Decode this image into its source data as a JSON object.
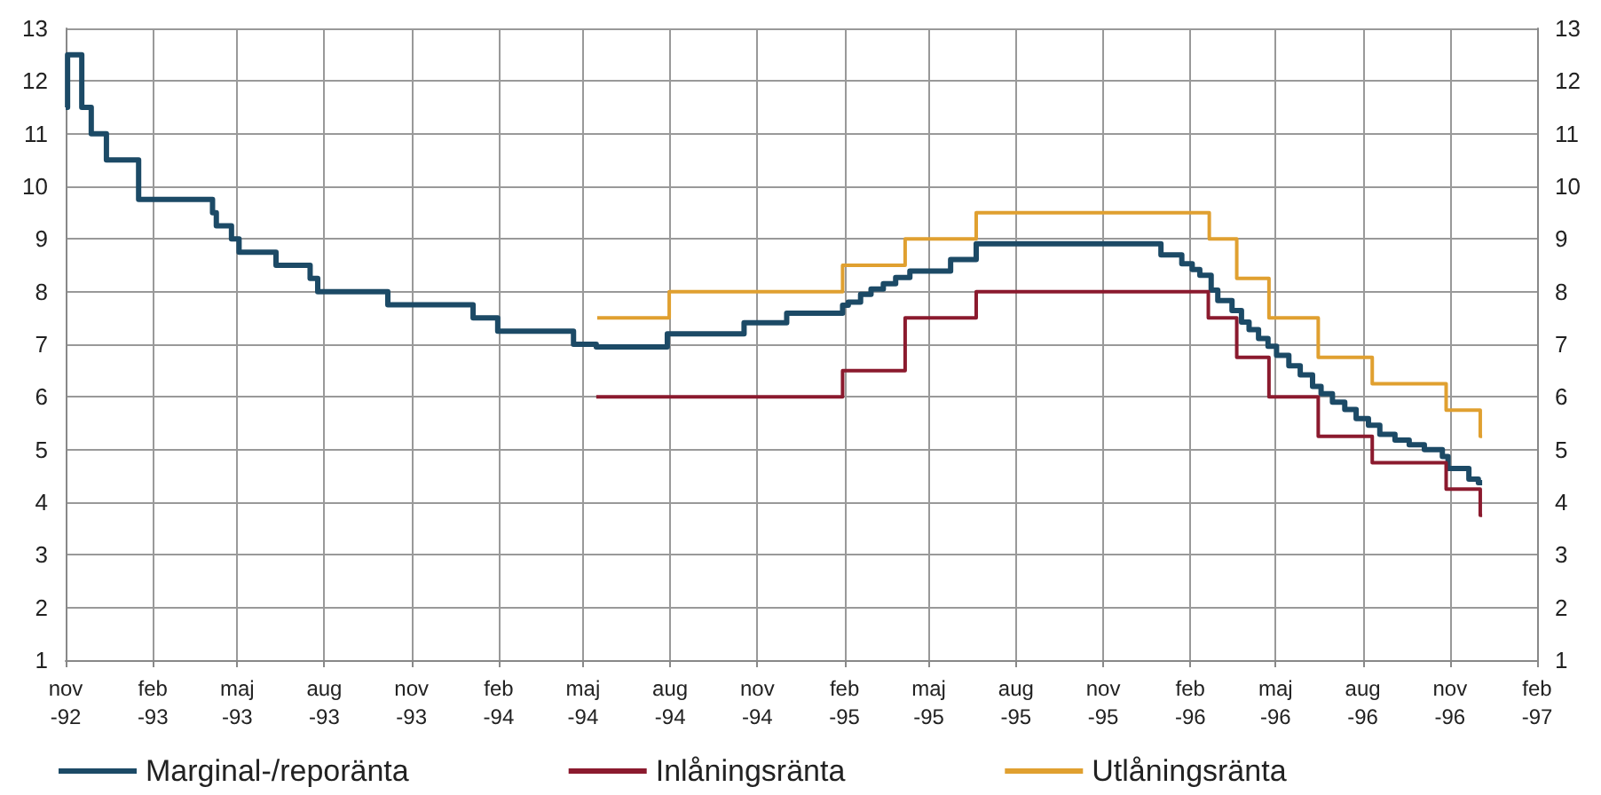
{
  "chart_data": {
    "type": "step",
    "xlim": [
      "1992-11-01",
      "1997-02-01"
    ],
    "xticks": [
      {
        "value": "1992-11-01",
        "label": "nov -92"
      },
      {
        "value": "1993-02-01",
        "label": "feb -93"
      },
      {
        "value": "1993-05-01",
        "label": "maj -93"
      },
      {
        "value": "1993-08-01",
        "label": "aug -93"
      },
      {
        "value": "1993-11-01",
        "label": "nov -93"
      },
      {
        "value": "1994-02-01",
        "label": "feb -94"
      },
      {
        "value": "1994-05-01",
        "label": "maj -94"
      },
      {
        "value": "1994-08-01",
        "label": "aug -94"
      },
      {
        "value": "1994-11-01",
        "label": "nov -94"
      },
      {
        "value": "1995-02-01",
        "label": "feb -95"
      },
      {
        "value": "1995-05-01",
        "label": "maj -95"
      },
      {
        "value": "1995-08-01",
        "label": "aug -95"
      },
      {
        "value": "1995-11-01",
        "label": "nov -95"
      },
      {
        "value": "1996-02-01",
        "label": "feb -96"
      },
      {
        "value": "1996-05-01",
        "label": "maj -96"
      },
      {
        "value": "1996-08-01",
        "label": "aug -96"
      },
      {
        "value": "1996-11-01",
        "label": "nov -96"
      },
      {
        "value": "1997-02-01",
        "label": "feb -97"
      }
    ],
    "ylim": [
      1,
      13
    ],
    "yticks": [
      1,
      2,
      3,
      4,
      5,
      6,
      7,
      8,
      9,
      10,
      11,
      12,
      13
    ],
    "y2lim": [
      1,
      13
    ],
    "y2ticks": [
      1,
      2,
      3,
      4,
      5,
      6,
      7,
      8,
      9,
      10,
      11,
      12,
      13
    ],
    "grid": true,
    "legend": "bottom left",
    "series": [
      {
        "name": "Marginal-/reporänta",
        "color": "#1c4a66",
        "x": [
          "1992-11-01",
          "1992-11-03",
          "1992-11-18",
          "1992-11-28",
          "1992-12-14",
          "1993-01-17",
          "1993-04-05",
          "1993-04-09",
          "1993-04-25",
          "1993-05-03",
          "1993-06-11",
          "1993-07-17",
          "1993-07-25",
          "1993-10-07",
          "1994-01-05",
          "1994-01-31",
          "1994-04-21",
          "1994-05-15",
          "1994-07-29",
          "1994-10-18",
          "1994-12-02",
          "1995-01-30",
          "1995-02-05",
          "1995-02-18",
          "1995-03-01",
          "1995-03-14",
          "1995-03-27",
          "1995-04-11",
          "1995-05-24",
          "1995-06-20",
          "1996-01-01",
          "1996-01-23",
          "1996-02-03",
          "1996-02-11",
          "1996-02-23",
          "1996-03-01",
          "1996-03-16",
          "1996-03-26",
          "1996-04-03",
          "1996-04-13",
          "1996-04-23",
          "1996-05-02",
          "1996-05-15",
          "1996-05-27",
          "1996-06-09",
          "1996-06-18",
          "1996-06-30",
          "1996-07-13",
          "1996-07-25",
          "1996-08-07",
          "1996-08-19",
          "1996-09-04",
          "1996-09-19",
          "1996-10-05",
          "1996-10-24",
          "1996-10-30",
          "1996-11-21",
          "1996-12-01",
          "1996-12-05"
        ],
        "values": [
          11.5,
          12.5,
          11.5,
          11,
          10.5,
          9.75,
          9.5,
          9.25,
          9,
          8.75,
          8.5,
          8.25,
          8,
          7.75,
          7.5,
          7.25,
          7,
          6.95,
          7.2,
          7.41,
          7.59,
          7.74,
          7.8,
          7.95,
          8.05,
          8.15,
          8.27,
          8.39,
          8.61,
          8.91,
          8.7,
          8.53,
          8.42,
          8.31,
          8.03,
          7.83,
          7.64,
          7.42,
          7.28,
          7.11,
          6.96,
          6.79,
          6.59,
          6.42,
          6.2,
          6.06,
          5.9,
          5.76,
          5.59,
          5.46,
          5.29,
          5.18,
          5.09,
          5,
          4.87,
          4.64,
          4.44,
          4.37,
          4.37
        ]
      },
      {
        "name": "Inlåningsränta",
        "color": "#8b1a2e",
        "x": [
          "1994-05-15",
          "1995-01-30",
          "1995-04-06",
          "1995-06-20",
          "1996-02-20",
          "1996-03-21",
          "1996-04-24",
          "1996-06-15",
          "1996-08-11",
          "1996-10-28",
          "1996-12-03",
          "1996-12-05"
        ],
        "values": [
          6,
          6.5,
          7.5,
          8,
          7.5,
          6.75,
          6,
          5.25,
          4.75,
          4.25,
          3.75,
          3.75
        ]
      },
      {
        "name": "Utlåningsränta",
        "color": "#e0a030",
        "x": [
          "1994-05-16",
          "1994-07-31",
          "1995-01-30",
          "1995-04-06",
          "1995-06-20",
          "1996-02-21",
          "1996-03-21",
          "1996-04-24",
          "1996-06-15",
          "1996-08-11",
          "1996-10-28",
          "1996-12-03",
          "1996-12-05"
        ],
        "values": [
          7.5,
          8,
          8.5,
          9,
          9.5,
          9,
          8.25,
          7.5,
          6.75,
          6.25,
          5.75,
          5.25,
          5.25
        ]
      }
    ]
  }
}
